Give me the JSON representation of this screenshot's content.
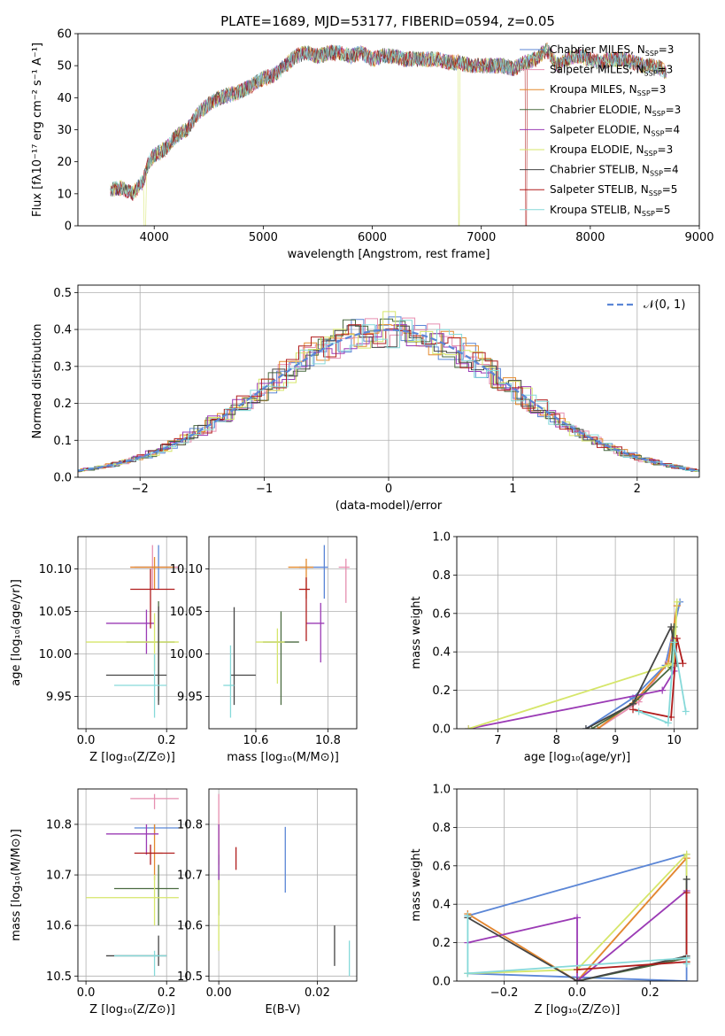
{
  "figure_title": "PLATE=1689, MJD=53177, FIBERID=0594, z=0.05",
  "colors": {
    "chabrier_miles": "#5b86d6",
    "salpeter_miles": "#e68fb0",
    "kroupa_miles": "#e38a2e",
    "chabrier_elodie": "#4a6b40",
    "salpeter_elodie": "#9b3bb5",
    "kroupa_elodie": "#d6e66a",
    "chabrier_stelib": "#444444",
    "salpeter_stelib": "#b01c1c",
    "kroupa_stelib": "#86d9d9",
    "grid": "#b0b0b0"
  },
  "legend_entries": [
    {
      "prefix": "Chabrier MILES, N",
      "sub": "SSP",
      "suffix": "=3"
    },
    {
      "prefix": "Salpeter MILES, N",
      "sub": "SSP",
      "suffix": "=3"
    },
    {
      "prefix": "Kroupa MILES, N",
      "sub": "SSP",
      "suffix": "=3"
    },
    {
      "prefix": "Chabrier ELODIE, N",
      "sub": "SSP",
      "suffix": "=3"
    },
    {
      "prefix": "Salpeter ELODIE, N",
      "sub": "SSP",
      "suffix": "=4"
    },
    {
      "prefix": "Kroupa ELODIE, N",
      "sub": "SSP",
      "suffix": "=3"
    },
    {
      "prefix": "Chabrier STELIB, N",
      "sub": "SSP",
      "suffix": "=4"
    },
    {
      "prefix": "Salpeter STELIB, N",
      "sub": "SSP",
      "suffix": "=5"
    },
    {
      "prefix": "Kroupa STELIB, N",
      "sub": "SSP",
      "suffix": "=5"
    }
  ],
  "chart_data": [
    {
      "id": "spectrum",
      "type": "line",
      "title": "PLATE=1689, MJD=53177, FIBERID=0594, z=0.05",
      "xlabel": "wavelength [Angstrom, rest frame]",
      "ylabel": "Flux [fλ10⁻¹⁷ erg cm⁻² s⁻¹ A⁻¹]",
      "xlim": [
        3300,
        9000
      ],
      "ylim": [
        0,
        60
      ],
      "xticks": [
        "4000",
        "5000",
        "6000",
        "7000",
        "8000",
        "9000"
      ],
      "yticks": [
        "0",
        "10",
        "20",
        "30",
        "40",
        "50",
        "60"
      ],
      "continuum_x": [
        3600,
        3700,
        3800,
        3900,
        3950,
        4000,
        4100,
        4200,
        4300,
        4400,
        4500,
        4600,
        4700,
        4800,
        4900,
        5000,
        5100,
        5200,
        5300,
        5400,
        5500,
        5600,
        5700,
        5800,
        5900,
        6000,
        6100,
        6200,
        6300,
        6400,
        6500,
        6600,
        6700,
        6800,
        6900,
        7000,
        7100,
        7200,
        7300,
        7400,
        7500,
        7600,
        7700,
        7800,
        7900,
        8000,
        8100,
        8200,
        8300,
        8400,
        8500,
        8600,
        8700
      ],
      "continuum_y": [
        11,
        12,
        10,
        14,
        20,
        22,
        24,
        28,
        30,
        35,
        38,
        40,
        41,
        42,
        44,
        46,
        47,
        50,
        53,
        54,
        53,
        54,
        54,
        53,
        54,
        52,
        53,
        53,
        52,
        52,
        52,
        52,
        51,
        51,
        50,
        50,
        50,
        50,
        49,
        51,
        52,
        55,
        50,
        52,
        53,
        52,
        51,
        52,
        52,
        51,
        50,
        50,
        48
      ],
      "grid": false,
      "legend": "top-right",
      "series": [
        "Chabrier MILES",
        "Salpeter MILES",
        "Kroupa MILES",
        "Chabrier ELODIE",
        "Salpeter ELODIE",
        "Kroupa ELODIE",
        "Chabrier STELIB",
        "Salpeter STELIB",
        "Kroupa STELIB"
      ]
    },
    {
      "id": "residuals",
      "type": "line",
      "xlabel": "(data-model)/error",
      "ylabel": "Normed distribution",
      "xlim": [
        -2.5,
        2.5
      ],
      "ylim": [
        0,
        0.52
      ],
      "xticks": [
        "−2",
        "−1",
        "0",
        "1",
        "2"
      ],
      "yticks": [
        "0.0",
        "0.1",
        "0.2",
        "0.3",
        "0.4",
        "0.5"
      ],
      "grid": true,
      "legend": "top-right",
      "reference_label": "𝒩(0, 1)",
      "reference_mean": 0,
      "reference_sigma": 1,
      "hist_bin_width": 0.1
    },
    {
      "id": "age_vs_Z",
      "type": "scatter",
      "xlabel": "Z [log₁₀(Z/Z⊙)]",
      "ylabel": "age  [log₁₀(age/yr)]",
      "xlim": [
        -0.02,
        0.25
      ],
      "ylim": [
        9.912,
        10.138
      ],
      "xticks": [
        "0.0",
        "0.2"
      ],
      "yticks": [
        "9.95",
        "10.00",
        "10.05",
        "10.10"
      ],
      "grid": true,
      "points": [
        {
          "x": 0.18,
          "y": 10.102,
          "x_lo": 0.12,
          "x_hi": 0.23,
          "y_lo": 10.076,
          "y_hi": 10.128
        },
        {
          "x": 0.165,
          "y": 10.102,
          "x_lo": 0.11,
          "x_hi": 0.23,
          "y_lo": 10.076,
          "y_hi": 10.128
        },
        {
          "x": 0.17,
          "y": 10.102,
          "x_lo": 0.11,
          "x_hi": 0.22,
          "y_lo": 10.076,
          "y_hi": 10.114
        },
        {
          "x": 0.18,
          "y": 10.014,
          "x_lo": 0.1,
          "x_hi": 0.22,
          "y_lo": 9.945,
          "y_hi": 10.062
        },
        {
          "x": 0.15,
          "y": 10.036,
          "x_lo": 0.05,
          "x_hi": 0.17,
          "y_lo": 10.0,
          "y_hi": 10.052
        },
        {
          "x": 0.17,
          "y": 10.014,
          "x_lo": 0.0,
          "x_hi": 0.23,
          "y_lo": 9.98,
          "y_hi": 10.048
        },
        {
          "x": 0.18,
          "y": 9.975,
          "x_lo": 0.05,
          "x_hi": 0.2,
          "y_lo": 9.94,
          "y_hi": 10.056
        },
        {
          "x": 0.16,
          "y": 10.076,
          "x_lo": 0.11,
          "x_hi": 0.22,
          "y_lo": 10.03,
          "y_hi": 10.1
        },
        {
          "x": 0.17,
          "y": 9.963,
          "x_lo": 0.07,
          "x_hi": 0.2,
          "y_lo": 9.925,
          "y_hi": 10.0
        }
      ]
    },
    {
      "id": "age_vs_mass",
      "type": "scatter",
      "xlabel": "mass [log₁₀(M/M⊙)]",
      "xlim": [
        10.47,
        10.88
      ],
      "ylim": [
        9.912,
        10.138
      ],
      "xticks": [
        "10.6",
        "10.8"
      ],
      "yticks": [
        "9.95",
        "10.00",
        "10.05",
        "10.10"
      ],
      "grid": true,
      "points": [
        {
          "x": 10.79,
          "y": 10.102,
          "x_lo": 10.72,
          "x_hi": 10.8,
          "y_lo": 10.065,
          "y_hi": 10.128
        },
        {
          "x": 10.85,
          "y": 10.102,
          "x_lo": 10.83,
          "x_hi": 10.86,
          "y_lo": 10.06,
          "y_hi": 10.112
        },
        {
          "x": 10.74,
          "y": 10.102,
          "x_lo": 10.69,
          "x_hi": 10.76,
          "y_lo": 10.065,
          "y_hi": 10.112
        },
        {
          "x": 10.67,
          "y": 10.014,
          "x_lo": 10.62,
          "x_hi": 10.72,
          "y_lo": 9.94,
          "y_hi": 10.05
        },
        {
          "x": 10.78,
          "y": 10.036,
          "x_lo": 10.74,
          "x_hi": 10.79,
          "y_lo": 9.99,
          "y_hi": 10.06
        },
        {
          "x": 10.66,
          "y": 10.014,
          "x_lo": 10.6,
          "x_hi": 10.68,
          "y_lo": 9.965,
          "y_hi": 10.03
        },
        {
          "x": 10.54,
          "y": 9.975,
          "x_lo": 10.53,
          "x_hi": 10.6,
          "y_lo": 9.94,
          "y_hi": 10.055
        },
        {
          "x": 10.74,
          "y": 10.076,
          "x_lo": 10.72,
          "x_hi": 10.75,
          "y_lo": 10.015,
          "y_hi": 10.09
        },
        {
          "x": 10.53,
          "y": 9.963,
          "x_lo": 10.51,
          "x_hi": 10.54,
          "y_lo": 9.925,
          "y_hi": 10.01
        }
      ]
    },
    {
      "id": "mass_weight_vs_age",
      "type": "line",
      "xlabel": "age  [log₁₀(age/yr)]",
      "ylabel": "mass weight",
      "xlim": [
        6.3,
        10.4
      ],
      "ylim": [
        0.0,
        1.0
      ],
      "xticks": [
        "7",
        "8",
        "9",
        "10"
      ],
      "yticks": [
        "0.0",
        "0.2",
        "0.4",
        "0.6",
        "0.8",
        "1.0"
      ],
      "grid": true,
      "series": [
        {
          "age": [
            8.5,
            9.3,
            9.85,
            10.1
          ],
          "weight": [
            0.0,
            0.16,
            0.33,
            0.66
          ]
        },
        {
          "age": [
            8.7,
            9.4,
            9.9,
            10.05
          ],
          "weight": [
            0.0,
            0.14,
            0.35,
            0.64
          ]
        },
        {
          "age": [
            8.7,
            9.35,
            9.9,
            10.05
          ],
          "weight": [
            0.0,
            0.15,
            0.34,
            0.64
          ]
        },
        {
          "age": [
            8.6,
            9.3,
            9.95,
            10.0
          ],
          "weight": [
            0.0,
            0.13,
            0.32,
            0.53
          ]
        },
        {
          "age": [
            6.5,
            9.8,
            10.0,
            10.0
          ],
          "weight": [
            0.0,
            0.2,
            0.3,
            0.46
          ]
        },
        {
          "age": [
            6.5,
            9.9,
            10.0,
            10.05
          ],
          "weight": [
            0.0,
            0.33,
            0.34,
            0.66
          ]
        },
        {
          "age": [
            8.5,
            9.3,
            9.95,
            10.05
          ],
          "weight": [
            0.0,
            0.13,
            0.53,
            0.34
          ]
        },
        {
          "age": [
            9.3,
            9.95,
            10.05,
            10.15
          ],
          "weight": [
            0.1,
            0.06,
            0.47,
            0.34
          ]
        },
        {
          "age": [
            9.4,
            9.9,
            10.0,
            10.2
          ],
          "weight": [
            0.09,
            0.03,
            0.45,
            0.09
          ]
        }
      ]
    },
    {
      "id": "mass_vs_Z",
      "type": "scatter",
      "xlabel": "Z [log₁₀(Z/Z⊙)]",
      "ylabel": "mass [log₁₀(M/M⊙)]",
      "xlim": [
        -0.02,
        0.25
      ],
      "ylim": [
        10.49,
        10.87
      ],
      "xticks": [
        "0.0",
        "0.2"
      ],
      "yticks": [
        "10.5",
        "10.6",
        "10.7",
        "10.8"
      ],
      "grid": true,
      "points": [
        {
          "x": 0.17,
          "y": 10.793,
          "x_lo": 0.12,
          "x_hi": 0.23,
          "y_lo": 10.78,
          "y_hi": 10.8
        },
        {
          "x": 0.17,
          "y": 10.851,
          "x_lo": 0.11,
          "x_hi": 0.23,
          "y_lo": 10.83,
          "y_hi": 10.86
        },
        {
          "x": 0.17,
          "y": 10.743,
          "x_lo": 0.15,
          "x_hi": 0.19,
          "y_lo": 10.69,
          "y_hi": 10.8
        },
        {
          "x": 0.18,
          "y": 10.673,
          "x_lo": 0.07,
          "x_hi": 0.23,
          "y_lo": 10.6,
          "y_hi": 10.72
        },
        {
          "x": 0.15,
          "y": 10.781,
          "x_lo": 0.05,
          "x_hi": 0.18,
          "y_lo": 10.74,
          "y_hi": 10.8
        },
        {
          "x": 0.17,
          "y": 10.655,
          "x_lo": 0.0,
          "x_hi": 0.23,
          "y_lo": 10.6,
          "y_hi": 10.7
        },
        {
          "x": 0.18,
          "y": 10.54,
          "x_lo": 0.05,
          "x_hi": 0.2,
          "y_lo": 10.52,
          "y_hi": 10.58
        },
        {
          "x": 0.16,
          "y": 10.743,
          "x_lo": 0.12,
          "x_hi": 0.22,
          "y_lo": 10.72,
          "y_hi": 10.76
        },
        {
          "x": 0.17,
          "y": 10.54,
          "x_lo": 0.07,
          "x_hi": 0.2,
          "y_lo": 10.5,
          "y_hi": 10.55
        }
      ]
    },
    {
      "id": "mass_vs_ebv",
      "type": "scatter",
      "xlabel": "E(B-V)",
      "xlim": [
        -0.002,
        0.028
      ],
      "ylim": [
        10.49,
        10.87
      ],
      "xticks": [
        "0.00",
        "0.02"
      ],
      "yticks": [
        "10.5",
        "10.6",
        "10.7",
        "10.8"
      ],
      "grid": true,
      "points": [
        {
          "x": 0.0135,
          "y": 10.73,
          "x_lo": 0.0135,
          "x_hi": 0.0135,
          "y_lo": 10.665,
          "y_hi": 10.795
        },
        {
          "x": 0.0,
          "y": 10.8,
          "x_lo": 0.0,
          "x_hi": 0.0,
          "y_lo": 10.74,
          "y_hi": 10.86
        },
        {
          "x": 0.0,
          "y": 10.76,
          "x_lo": 0.0,
          "x_hi": 0.0,
          "y_lo": 10.72,
          "y_hi": 10.8
        },
        {
          "x": 0.0,
          "y": 10.69,
          "x_lo": 0.0,
          "x_hi": 0.0,
          "y_lo": 10.62,
          "y_hi": 10.74
        },
        {
          "x": 0.0,
          "y": 10.75,
          "x_lo": 0.0,
          "x_hi": 0.0,
          "y_lo": 10.69,
          "y_hi": 10.8
        },
        {
          "x": 0.0,
          "y": 10.62,
          "x_lo": 0.0,
          "x_hi": 0.0,
          "y_lo": 10.55,
          "y_hi": 10.69
        },
        {
          "x": 0.0235,
          "y": 10.56,
          "x_lo": 0.0235,
          "x_hi": 0.0235,
          "y_lo": 10.52,
          "y_hi": 10.6
        },
        {
          "x": 0.0035,
          "y": 10.73,
          "x_lo": 0.0035,
          "x_hi": 0.0035,
          "y_lo": 10.71,
          "y_hi": 10.755
        },
        {
          "x": 0.0265,
          "y": 10.53,
          "x_lo": 0.0265,
          "x_hi": 0.0265,
          "y_lo": 10.5,
          "y_hi": 10.57
        }
      ]
    },
    {
      "id": "mass_weight_vs_Z",
      "type": "line",
      "xlabel": "Z [log₁₀(Z/Z⊙)]",
      "ylabel": "mass weight",
      "xlim": [
        -0.33,
        0.33
      ],
      "ylim": [
        0.0,
        1.0
      ],
      "xticks": [
        "−0.2",
        "0.0",
        "0.2"
      ],
      "yticks": [
        "0.0",
        "0.2",
        "0.4",
        "0.6",
        "0.8",
        "1.0"
      ],
      "grid": true,
      "series": [
        {
          "Z": [
            -0.3,
            0.3,
            0.3,
            -0.3
          ],
          "weight": [
            0.34,
            0.66,
            0.0,
            0.04
          ]
        },
        {
          "Z": [
            -0.3,
            0.0,
            0.3
          ],
          "weight": [
            0.35,
            0.0,
            0.64
          ]
        },
        {
          "Z": [
            -0.3,
            0.0,
            0.3
          ],
          "weight": [
            0.35,
            0.0,
            0.64
          ]
        },
        {
          "Z": [
            0.0,
            0.3,
            0.3
          ],
          "weight": [
            0.0,
            0.12,
            0.53
          ]
        },
        {
          "Z": [
            -0.3,
            0.0,
            0.0,
            0.3
          ],
          "weight": [
            0.2,
            0.33,
            0.0,
            0.47
          ]
        },
        {
          "Z": [
            -0.3,
            0.0,
            0.3,
            0.3
          ],
          "weight": [
            0.04,
            0.06,
            0.66,
            0.1
          ]
        },
        {
          "Z": [
            -0.3,
            0.0,
            0.3,
            0.3
          ],
          "weight": [
            0.33,
            0.0,
            0.13,
            0.53
          ]
        },
        {
          "Z": [
            0.0,
            0.3,
            0.3
          ],
          "weight": [
            0.06,
            0.1,
            0.46
          ]
        },
        {
          "Z": [
            -0.3,
            -0.3,
            0.3,
            0.3
          ],
          "weight": [
            0.34,
            0.04,
            0.12,
            0.09
          ]
        }
      ]
    }
  ]
}
